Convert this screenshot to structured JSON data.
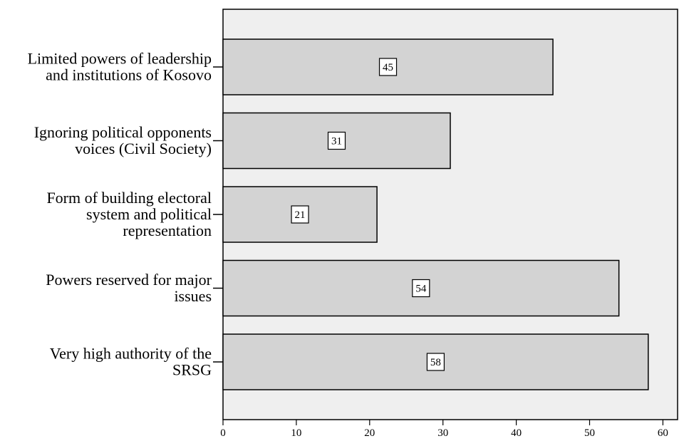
{
  "chart_data": {
    "type": "bar",
    "orientation": "horizontal",
    "categories": [
      [
        "Limited powers of leadership",
        "and institutions of  Kosovo"
      ],
      [
        "Ignoring political opponents",
        "voices (Civil Society)"
      ],
      [
        "Form of building electoral",
        "system and political",
        "representation"
      ],
      [
        "Powers reserved for major",
        "issues"
      ],
      [
        "Very high authority of the",
        "SRSG"
      ]
    ],
    "values": [
      45,
      31,
      21,
      54,
      58
    ],
    "data_labels": [
      "45",
      "31",
      "21",
      "54",
      "58"
    ],
    "xlim": [
      0,
      62
    ],
    "xticks": [
      0,
      10,
      20,
      30,
      40,
      50,
      60
    ],
    "xtick_labels": [
      "0",
      "10",
      "20",
      "30",
      "40",
      "50",
      "60"
    ],
    "grid": false,
    "legend": false,
    "title": "",
    "xlabel": "",
    "ylabel": "",
    "colors": {
      "plot_background": "#efefef",
      "bar_fill": "#d3d3d3",
      "bar_stroke": "#000000",
      "label_box_fill": "#ffffff"
    }
  }
}
